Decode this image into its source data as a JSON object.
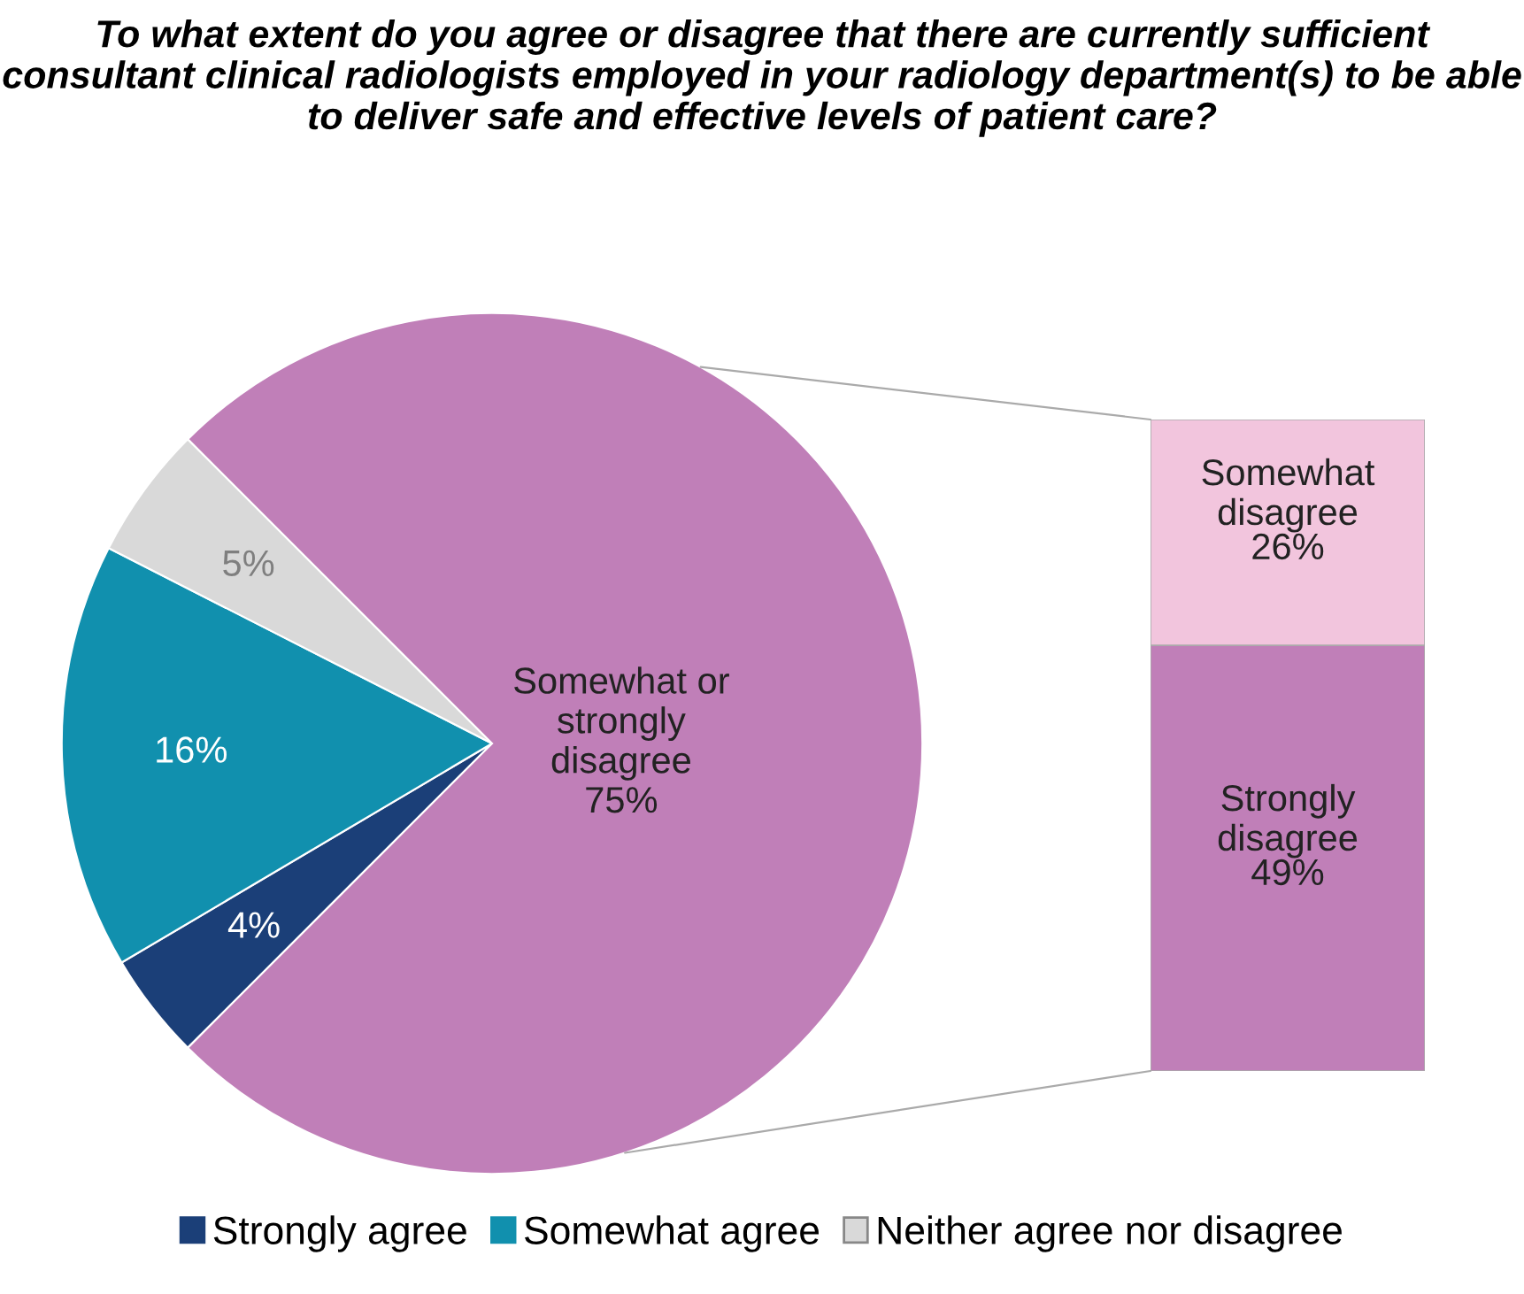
{
  "chart_data": [
    {
      "type": "pie",
      "title": "To what extent do you agree or disagree that there are currently sufficient consultant clinical radiologists employed in your radiology department(s) to be able to deliver safe and effective levels of patient care?",
      "categories": [
        "Strongly agree",
        "Somewhat agree",
        "Neither agree nor disagree",
        "Somewhat or\nstrongly\ndisagree"
      ],
      "values": [
        4,
        16,
        5,
        75
      ],
      "colors": [
        "#1b3f78",
        "#1190ae",
        "#d9d9d9",
        "#c07fb8"
      ],
      "value_labels": [
        "4%",
        "16%",
        "5%",
        "75%"
      ],
      "legend": "bottom"
    },
    {
      "type": "bar",
      "stacked": true,
      "categories": [
        null
      ],
      "series": [
        {
          "name": "Strongly\ndisagree",
          "color": "#c07fb8",
          "values": [
            49
          ],
          "value_labels": [
            "49%"
          ]
        },
        {
          "name": "Somewhat\ndisagree",
          "color": "#f2c5dd",
          "values": [
            26
          ],
          "value_labels": [
            "26%"
          ]
        }
      ]
    }
  ]
}
